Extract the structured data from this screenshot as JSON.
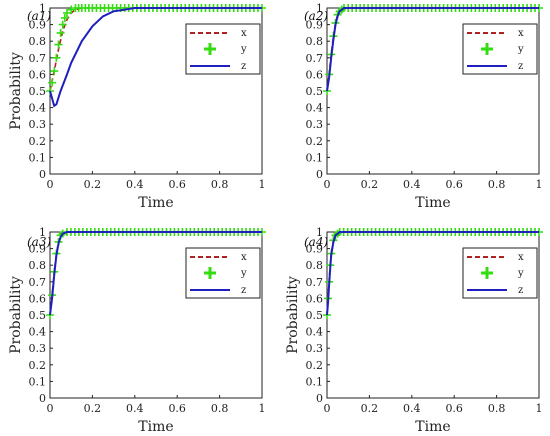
{
  "colors": {
    "x": "#b22222",
    "y": "#33dd11",
    "z": "#1f1fbf",
    "axis": "#222222"
  },
  "chart_data": [
    {
      "type": "line",
      "panel": "(a1)",
      "xlabel": "Time",
      "ylabel": "Probability",
      "xlim": [
        0,
        1
      ],
      "ylim": [
        0,
        1
      ],
      "xticks": [
        "0",
        "0.2",
        "0.4",
        "0.6",
        "0.8",
        "1"
      ],
      "yticks": [
        "0",
        "0.1",
        "0.2",
        "0.3",
        "0.4",
        "0.5",
        "0.6",
        "0.7",
        "0.8",
        "0.9",
        "1"
      ],
      "legend": "top-right",
      "series": [
        {
          "name": "x",
          "style": "dashed",
          "x": [
            0,
            0.02,
            0.04,
            0.06,
            0.08,
            0.1,
            0.12,
            0.15,
            0.2,
            1
          ],
          "y": [
            0.5,
            0.62,
            0.75,
            0.86,
            0.93,
            0.97,
            0.99,
            1,
            1,
            1
          ]
        },
        {
          "name": "y",
          "style": "plus-markers",
          "x": [
            0,
            0.01,
            0.02,
            0.03,
            0.04,
            0.05,
            0.06,
            0.07,
            0.08,
            0.1,
            0.12,
            0.15,
            0.2,
            1
          ],
          "y": [
            0.5,
            0.55,
            0.62,
            0.7,
            0.78,
            0.85,
            0.9,
            0.94,
            0.97,
            0.99,
            1,
            1,
            1,
            1
          ]
        },
        {
          "name": "z",
          "style": "solid",
          "x": [
            0,
            0.02,
            0.03,
            0.05,
            0.08,
            0.1,
            0.15,
            0.2,
            0.25,
            0.3,
            0.35,
            0.4,
            1
          ],
          "y": [
            0.5,
            0.41,
            0.42,
            0.5,
            0.6,
            0.67,
            0.8,
            0.89,
            0.95,
            0.98,
            0.99,
            1,
            1
          ]
        }
      ]
    },
    {
      "type": "line",
      "panel": "(a2)",
      "xlabel": "Time",
      "ylabel": "",
      "xlim": [
        0,
        1
      ],
      "ylim": [
        0,
        1
      ],
      "xticks": [
        "0",
        "0.2",
        "0.4",
        "0.6",
        "0.8",
        "1"
      ],
      "yticks": [
        "0",
        "0.1",
        "0.2",
        "0.3",
        "0.4",
        "0.5",
        "0.6",
        "0.7",
        "0.8",
        "0.9",
        "1"
      ],
      "legend": "top-right",
      "series": [
        {
          "name": "x",
          "style": "dashed",
          "x": [
            0,
            0.01,
            0.02,
            0.03,
            0.04,
            0.05,
            0.06,
            0.08,
            0.1,
            1
          ],
          "y": [
            0.5,
            0.6,
            0.72,
            0.83,
            0.91,
            0.96,
            0.98,
            1,
            1,
            1
          ]
        },
        {
          "name": "y",
          "style": "plus-markers",
          "x": [
            0,
            0.01,
            0.02,
            0.03,
            0.04,
            0.05,
            0.06,
            0.07,
            0.08,
            0.1,
            1
          ],
          "y": [
            0.5,
            0.6,
            0.72,
            0.83,
            0.91,
            0.96,
            0.98,
            0.99,
            1,
            1,
            1
          ]
        },
        {
          "name": "z",
          "style": "solid",
          "x": [
            0,
            0.01,
            0.02,
            0.03,
            0.04,
            0.05,
            0.06,
            0.08,
            0.1,
            1
          ],
          "y": [
            0.5,
            0.58,
            0.7,
            0.81,
            0.9,
            0.95,
            0.98,
            1,
            1,
            1
          ]
        }
      ]
    },
    {
      "type": "line",
      "panel": "(a3)",
      "xlabel": "Time",
      "ylabel": "Probability",
      "xlim": [
        0,
        1
      ],
      "ylim": [
        0,
        1
      ],
      "xticks": [
        "0",
        "0.2",
        "0.4",
        "0.6",
        "0.8",
        "1"
      ],
      "yticks": [
        "0",
        "0.1",
        "0.2",
        "0.3",
        "0.4",
        "0.5",
        "0.6",
        "0.7",
        "0.8",
        "0.9",
        "1"
      ],
      "legend": "top-right",
      "series": [
        {
          "name": "x",
          "style": "dashed",
          "x": [
            0,
            0.01,
            0.02,
            0.03,
            0.04,
            0.05,
            0.06,
            0.08,
            1
          ],
          "y": [
            0.5,
            0.62,
            0.76,
            0.87,
            0.94,
            0.98,
            0.99,
            1,
            1
          ]
        },
        {
          "name": "y",
          "style": "plus-markers",
          "x": [
            0,
            0.01,
            0.02,
            0.03,
            0.04,
            0.05,
            0.06,
            0.08,
            1
          ],
          "y": [
            0.5,
            0.62,
            0.76,
            0.87,
            0.94,
            0.98,
            0.99,
            1,
            1
          ]
        },
        {
          "name": "z",
          "style": "solid",
          "x": [
            0,
            0.01,
            0.02,
            0.03,
            0.04,
            0.05,
            0.06,
            0.08,
            1
          ],
          "y": [
            0.5,
            0.6,
            0.74,
            0.86,
            0.93,
            0.97,
            0.99,
            1,
            1
          ]
        }
      ]
    },
    {
      "type": "line",
      "panel": "(a4)",
      "xlabel": "Time",
      "ylabel": "Probability",
      "xlim": [
        0,
        1
      ],
      "ylim": [
        0,
        1
      ],
      "xticks": [
        "0",
        "0.2",
        "0.4",
        "0.6",
        "0.8",
        "1"
      ],
      "yticks": [
        "0",
        "0.1",
        "0.2",
        "0.3",
        "0.4",
        "0.5",
        "0.6",
        "0.7",
        "0.8",
        "0.9",
        "1"
      ],
      "legend": "top-right",
      "series": [
        {
          "name": "x",
          "style": "dashed",
          "x": [
            0,
            0.005,
            0.01,
            0.015,
            0.02,
            0.03,
            0.04,
            0.05,
            0.06,
            1
          ],
          "y": [
            0.5,
            0.6,
            0.7,
            0.8,
            0.87,
            0.95,
            0.98,
            0.99,
            1,
            1
          ]
        },
        {
          "name": "y",
          "style": "plus-markers",
          "x": [
            0,
            0.005,
            0.01,
            0.015,
            0.02,
            0.03,
            0.04,
            0.05,
            0.06,
            1
          ],
          "y": [
            0.5,
            0.6,
            0.7,
            0.8,
            0.87,
            0.95,
            0.98,
            0.99,
            1,
            1
          ]
        },
        {
          "name": "z",
          "style": "solid",
          "x": [
            0,
            0.005,
            0.01,
            0.015,
            0.02,
            0.03,
            0.04,
            0.05,
            0.06,
            1
          ],
          "y": [
            0.5,
            0.58,
            0.68,
            0.78,
            0.86,
            0.94,
            0.98,
            0.99,
            1,
            1
          ]
        }
      ]
    }
  ]
}
